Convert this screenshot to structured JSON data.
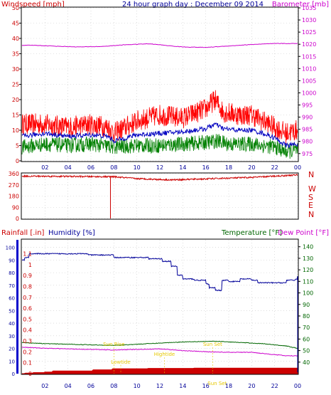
{
  "title": "24 hour graph day : December 09 2014",
  "colors": {
    "wind_gust": "#ff0000",
    "wind_avg": "#0000c0",
    "wind_min": "#008000",
    "barometer": "#cc00cc",
    "direction": "#cc0000",
    "rainfall": "#cc0000",
    "humidity": "#000099",
    "temperature": "#006600",
    "dewpoint": "#cc00cc",
    "sun_labels": "#e6c800",
    "frame": "#000000",
    "grid": "#c8c8c8"
  },
  "chart_data": [
    {
      "type": "line",
      "panel": "wind-barometer",
      "left_axis_label": "Windspeed [mph]",
      "right_axis_label": "Barometer [mb]",
      "x_ticks": [
        "02",
        "04",
        "06",
        "08",
        "10",
        "12",
        "14",
        "16",
        "18",
        "20",
        "22",
        "00"
      ],
      "left_ticks": [
        "0",
        "5",
        "10",
        "15",
        "20",
        "25",
        "30",
        "35",
        "40",
        "45",
        "50"
      ],
      "right_ticks": [
        "975",
        "980",
        "985",
        "990",
        "995",
        "1000",
        "1005",
        "1010",
        "1015",
        "1020",
        "1025",
        "1030",
        "1035"
      ],
      "left_ylim": [
        0,
        50
      ],
      "right_ylim": [
        972,
        1035
      ],
      "x_range_hours": [
        0,
        24
      ],
      "series": [
        {
          "key": "gust",
          "axis": "left",
          "noise": 3.5,
          "x": [
            0,
            2,
            4,
            6,
            7.5,
            8,
            8.5,
            10,
            12,
            14,
            16,
            16.8,
            17.5,
            19,
            20,
            21,
            22,
            23,
            24
          ],
          "y": [
            12,
            12,
            11,
            12,
            11,
            9,
            10,
            13,
            15,
            14,
            17,
            20,
            16,
            15,
            15,
            13,
            11,
            9,
            10
          ]
        },
        {
          "key": "avg",
          "axis": "left",
          "noise": 0.8,
          "x": [
            0,
            2,
            4,
            6,
            7.5,
            8,
            8.5,
            10,
            12,
            14,
            16,
            16.8,
            17.5,
            19,
            20,
            21,
            22,
            23,
            24
          ],
          "y": [
            8,
            9,
            8,
            8.5,
            8,
            6.5,
            7,
            8.5,
            9,
            9.5,
            10.5,
            12,
            10.5,
            10,
            10,
            9,
            7.5,
            5,
            5.5
          ]
        },
        {
          "key": "min",
          "axis": "left",
          "noise": 2.5,
          "x": [
            0,
            2,
            4,
            6,
            8,
            10,
            12,
            14,
            16,
            17,
            18,
            20,
            22,
            23,
            24
          ],
          "y": [
            4.5,
            5.5,
            5,
            5.5,
            4.5,
            5,
            5,
            5.5,
            6,
            6.5,
            5.5,
            5.5,
            4.5,
            3,
            3.5
          ]
        },
        {
          "key": "barometer",
          "axis": "right",
          "noise": 0.1,
          "x": [
            0,
            1,
            3,
            5,
            7,
            9,
            11,
            12,
            13,
            14,
            16,
            18,
            20,
            22,
            24
          ],
          "y": [
            1019.5,
            1019.6,
            1019.2,
            1018.9,
            1019.1,
            1019.8,
            1020.2,
            1019.8,
            1019.3,
            1018.9,
            1018.7,
            1019.3,
            1019.9,
            1020.3,
            1020.3
          ]
        }
      ]
    },
    {
      "type": "line",
      "panel": "wind-direction",
      "left_ticks": [
        "0",
        "90",
        "180",
        "270",
        "360"
      ],
      "right_labels": [
        "N",
        "W",
        "S",
        "E",
        "N"
      ],
      "ylim": [
        0,
        360
      ],
      "x_range_hours": [
        0,
        24
      ],
      "series": [
        {
          "key": "direction",
          "axis": "left",
          "noise": 6,
          "x": [
            0,
            4,
            8,
            10,
            13,
            16,
            20,
            23,
            24
          ],
          "y": [
            340,
            338,
            335,
            320,
            310,
            318,
            330,
            345,
            350
          ]
        }
      ],
      "events": [
        {
          "x": 7.7,
          "y": 0
        }
      ]
    },
    {
      "type": "line",
      "panel": "rain-humidity-temperature",
      "left_axis_label": "Rainfall [.in]",
      "humidity_axis_label": "Humidity [%]",
      "right_axis_label": "Temperature [°F]",
      "dewpoint_axis_label": "Dew Point [°F]",
      "x_ticks": [
        "02",
        "04",
        "06",
        "08",
        "10",
        "12",
        "14",
        "16",
        "18",
        "20",
        "22",
        "00"
      ],
      "rain_ticks": [
        "0",
        "0.1",
        "0.2",
        "0.3",
        "0.4",
        "0.5",
        "0.6",
        "0.7",
        "0.8",
        "0.9",
        "1",
        "1.1"
      ],
      "humidity_ticks": [
        "0",
        "10",
        "20",
        "30",
        "40",
        "50",
        "60",
        "70",
        "80",
        "90",
        "100"
      ],
      "temperature_ticks": [
        "40",
        "50",
        "60",
        "70",
        "80",
        "90",
        "100",
        "110",
        "120",
        "130",
        "140"
      ],
      "humidity_ylim": [
        0,
        106
      ],
      "temperature_ylim": [
        30,
        146
      ],
      "x_range_hours": [
        0,
        24
      ],
      "series": [
        {
          "key": "humidity",
          "axis": "humidity",
          "noise": 0.4,
          "step": true,
          "x": [
            0,
            0.2,
            0.6,
            1.5,
            5,
            5.8,
            8,
            11,
            12.2,
            13,
            13.5,
            14,
            15,
            16,
            16.3,
            16.8,
            17.4,
            18,
            19,
            20,
            20.5,
            21.5,
            23,
            23.8,
            24
          ],
          "y": [
            90,
            92,
            95,
            95,
            95,
            94,
            92,
            91,
            89,
            85,
            78,
            75,
            74,
            71,
            68,
            66,
            74,
            73,
            75,
            74,
            72,
            72,
            74,
            75,
            77
          ]
        },
        {
          "key": "temperature",
          "axis": "temperature",
          "noise": 0.25,
          "x": [
            0,
            2,
            4,
            6,
            8,
            10,
            12,
            14,
            16,
            17,
            19,
            21,
            23,
            24
          ],
          "y": [
            57,
            56,
            55.5,
            55,
            54.5,
            55.5,
            56.5,
            57.5,
            58,
            58,
            57,
            56,
            54,
            52
          ]
        },
        {
          "key": "dewpoint",
          "axis": "temperature",
          "noise": 0.25,
          "x": [
            0,
            2,
            4,
            6,
            8,
            10,
            12,
            14,
            16,
            18,
            20,
            21,
            23,
            24
          ],
          "y": [
            53,
            52,
            51.5,
            51,
            50.5,
            51,
            51.5,
            50,
            49,
            48.5,
            48.5,
            47.5,
            45.5,
            45.5
          ]
        },
        {
          "key": "rainfall",
          "axis": "rain",
          "step": true,
          "x": [
            0,
            0.3,
            1,
            2,
            2.7,
            6.2,
            7.9,
            11,
            15,
            24
          ],
          "y": [
            0,
            0.005,
            0.01,
            0.015,
            0.025,
            0.035,
            0.045,
            0.048,
            0.05,
            0.05
          ]
        }
      ],
      "annotations": [
        {
          "label": "Sun Rise",
          "x": 8.0,
          "y": 22
        },
        {
          "label": "Lowtide",
          "x": 8.6,
          "y": 8
        },
        {
          "label": "Hightide",
          "x": 12.4,
          "y": 14
        },
        {
          "label": "Sun Set",
          "x": 16.6,
          "y": 22
        },
        {
          "label": "Sun Set",
          "x": 17.0,
          "y": -9
        }
      ]
    }
  ]
}
